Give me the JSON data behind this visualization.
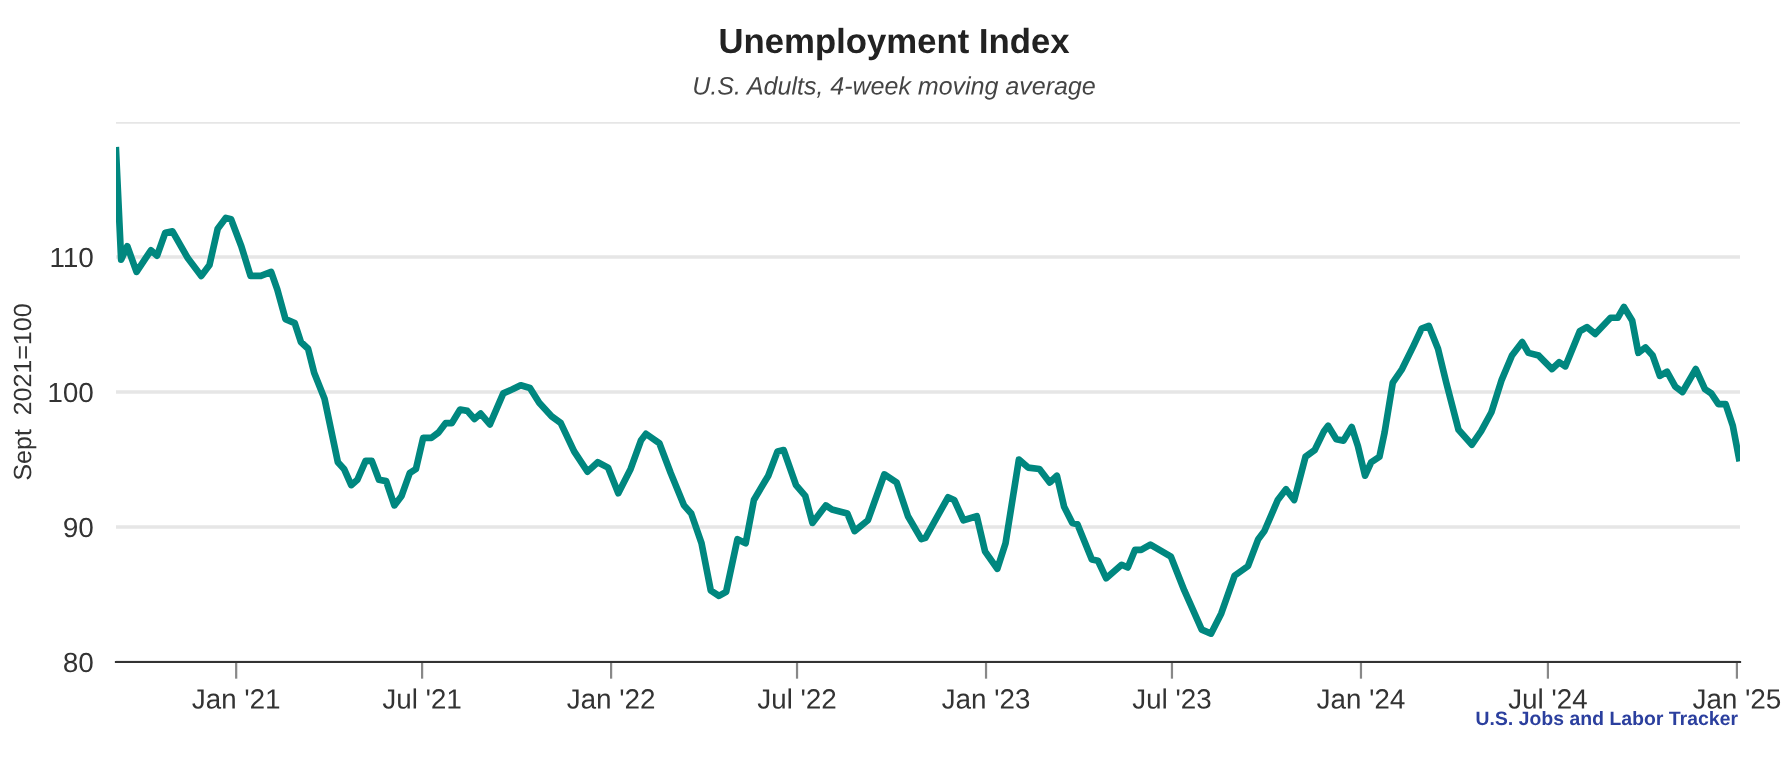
{
  "chart_data": {
    "type": "line",
    "title": "Unemployment Index",
    "subtitle": "U.S. Adults, 4-week moving average",
    "ylabel": "Sept  2021=100",
    "annotations": [
      "U.S. Jobs and Labor Tracker"
    ],
    "x": [
      "2020-09-06",
      "2020-09-11",
      "2020-09-17",
      "2020-09-26",
      "2020-10-10",
      "2020-10-16",
      "2020-10-24",
      "2020-10-31",
      "2020-11-15",
      "2020-11-28",
      "2020-12-06",
      "2020-12-14",
      "2020-12-22",
      "2020-12-27",
      "2021-01-06",
      "2021-01-15",
      "2021-01-25",
      "2021-02-04",
      "2021-02-10",
      "2021-02-18",
      "2021-02-27",
      "2021-03-05",
      "2021-03-12",
      "2021-03-18",
      "2021-03-28",
      "2021-04-10",
      "2021-04-16",
      "2021-04-23",
      "2021-04-29",
      "2021-05-07",
      "2021-05-13",
      "2021-05-20",
      "2021-05-27",
      "2021-06-04",
      "2021-06-11",
      "2021-06-19",
      "2021-06-25",
      "2021-07-02",
      "2021-07-10",
      "2021-07-17",
      "2021-07-24",
      "2021-07-30",
      "2021-08-07",
      "2021-08-14",
      "2021-08-21",
      "2021-08-27",
      "2021-09-05",
      "2021-09-18",
      "2021-09-27",
      "2021-10-05",
      "2021-10-14",
      "2021-10-23",
      "2021-11-04",
      "2021-11-13",
      "2021-11-26",
      "2021-12-09",
      "2021-12-19",
      "2021-12-29",
      "2022-01-08",
      "2022-01-20",
      "2022-01-30",
      "2022-02-04",
      "2022-02-17",
      "2022-02-28",
      "2022-03-13",
      "2022-03-20",
      "2022-03-30",
      "2022-04-08",
      "2022-04-16",
      "2022-04-23",
      "2022-05-04",
      "2022-05-12",
      "2022-05-20",
      "2022-06-03",
      "2022-06-12",
      "2022-06-18",
      "2022-06-30",
      "2022-07-09",
      "2022-07-16",
      "2022-07-29",
      "2022-08-04",
      "2022-08-19",
      "2022-08-26",
      "2022-09-08",
      "2022-09-24",
      "2022-10-06",
      "2022-10-17",
      "2022-10-30",
      "2022-11-03",
      "2022-11-25",
      "2022-12-01",
      "2022-12-10",
      "2022-12-23",
      "2022-12-31",
      "2023-01-12",
      "2023-01-20",
      "2023-02-02",
      "2023-02-11",
      "2023-02-22",
      "2023-03-04",
      "2023-03-11",
      "2023-03-18",
      "2023-03-26",
      "2023-03-31",
      "2023-04-14",
      "2023-04-20",
      "2023-04-28",
      "2023-05-13",
      "2023-05-19",
      "2023-05-26",
      "2023-06-01",
      "2023-06-10",
      "2023-06-30",
      "2023-07-13",
      "2023-07-30",
      "2023-08-08",
      "2023-08-18",
      "2023-08-31",
      "2023-09-13",
      "2023-09-23",
      "2023-09-29",
      "2023-10-12",
      "2023-10-20",
      "2023-10-28",
      "2023-11-08",
      "2023-11-17",
      "2023-11-26",
      "2023-11-30",
      "2023-12-08",
      "2023-12-15",
      "2023-12-23",
      "2023-12-29",
      "2024-01-05",
      "2024-01-11",
      "2024-01-19",
      "2024-01-24",
      "2024-02-01",
      "2024-02-10",
      "2024-02-21",
      "2024-02-29",
      "2024-03-07",
      "2024-03-16",
      "2024-03-24",
      "2024-04-05",
      "2024-04-18",
      "2024-04-27",
      "2024-05-07",
      "2024-05-17",
      "2024-05-27",
      "2024-06-06",
      "2024-06-12",
      "2024-06-22",
      "2024-07-05",
      "2024-07-12",
      "2024-07-18",
      "2024-08-01",
      "2024-08-08",
      "2024-08-16",
      "2024-08-31",
      "2024-09-07",
      "2024-09-13",
      "2024-09-21",
      "2024-09-27",
      "2024-10-04",
      "2024-10-11",
      "2024-10-18",
      "2024-10-25",
      "2024-11-02",
      "2024-11-09",
      "2024-11-22",
      "2024-12-01",
      "2024-12-07",
      "2024-12-14",
      "2024-12-21",
      "2024-12-28",
      "2025-01-03"
    ],
    "series": [
      {
        "color": "#00877f",
        "values": [
          117.9,
          109.8,
          110.8,
          108.9,
          110.5,
          110.1,
          111.8,
          111.9,
          109.9,
          108.6,
          109.4,
          112.1,
          112.9,
          112.8,
          110.8,
          108.6,
          108.6,
          108.9,
          107.6,
          105.4,
          105.1,
          103.7,
          103.2,
          101.4,
          99.5,
          94.8,
          94.3,
          93.1,
          93.5,
          94.9,
          94.9,
          93.5,
          93.4,
          91.6,
          92.3,
          94.0,
          94.3,
          96.6,
          96.6,
          97.0,
          97.7,
          97.7,
          98.7,
          98.6,
          98.0,
          98.4,
          97.6,
          99.9,
          100.2,
          100.5,
          100.3,
          99.2,
          98.2,
          97.7,
          95.6,
          94.1,
          94.8,
          94.4,
          92.5,
          94.3,
          96.4,
          96.9,
          96.2,
          94.0,
          91.6,
          91.0,
          88.8,
          85.3,
          84.9,
          85.2,
          89.1,
          88.8,
          92.0,
          93.8,
          95.6,
          95.7,
          93.1,
          92.3,
          90.3,
          91.6,
          91.3,
          91.0,
          89.7,
          90.5,
          93.9,
          93.3,
          90.8,
          89.1,
          89.2,
          92.2,
          92.0,
          90.5,
          90.8,
          88.2,
          86.9,
          88.8,
          95.0,
          94.4,
          94.3,
          93.3,
          93.8,
          91.5,
          90.3,
          90.2,
          87.6,
          87.5,
          86.2,
          87.2,
          87.0,
          88.3,
          88.3,
          88.7,
          87.8,
          85.3,
          82.4,
          82.1,
          83.6,
          86.4,
          87.1,
          89.1,
          89.7,
          92.0,
          92.8,
          92.0,
          95.2,
          95.7,
          97.1,
          97.5,
          96.5,
          96.4,
          97.4,
          96.0,
          93.8,
          94.8,
          95.2,
          97.0,
          100.7,
          101.7,
          103.4,
          104.7,
          104.9,
          103.2,
          100.7,
          97.2,
          96.1,
          97.1,
          98.5,
          100.9,
          102.7,
          103.7,
          102.9,
          102.7,
          101.7,
          102.2,
          101.9,
          104.5,
          104.8,
          104.3,
          105.5,
          105.5,
          106.3,
          105.3,
          102.9,
          103.3,
          102.7,
          101.2,
          101.5,
          100.4,
          100.0,
          101.7,
          100.2,
          99.9,
          99.1,
          99.1,
          97.5,
          95.1
        ]
      }
    ],
    "xlim": [
      "2020-09-06",
      "2025-01-04"
    ],
    "ylim": [
      80,
      120
    ],
    "xticks": [
      {
        "value": "2021-01-01",
        "label": "Jan '21"
      },
      {
        "value": "2021-07-01",
        "label": "Jul '21"
      },
      {
        "value": "2022-01-01",
        "label": "Jan '22"
      },
      {
        "value": "2022-07-01",
        "label": "Jul '22"
      },
      {
        "value": "2023-01-01",
        "label": "Jan '23"
      },
      {
        "value": "2023-07-01",
        "label": "Jul '23"
      },
      {
        "value": "2024-01-01",
        "label": "Jan '24"
      },
      {
        "value": "2024-07-01",
        "label": "Jul '24"
      },
      {
        "value": "2025-01-01",
        "label": "Jan '25"
      }
    ],
    "yticks": [
      80,
      90,
      100,
      110,
      {
        "value": 120,
        "label": null
      }
    ],
    "grid": "y",
    "marker": "none",
    "line_style": "solid"
  }
}
